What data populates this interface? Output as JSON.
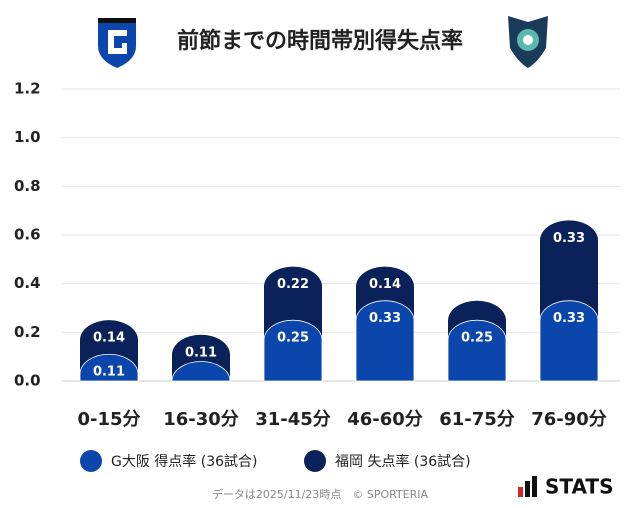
{
  "chart_data": {
    "type": "stacked-bar",
    "title": "前節までの時間帯別得失点率",
    "categories": [
      "0-15分",
      "16-30分",
      "31-45分",
      "46-60分",
      "61-75分",
      "76-90分"
    ],
    "series": [
      {
        "name": "G大阪 得点率 (36試合)",
        "color": "#0b46ad",
        "values": [
          0.11,
          0.08,
          0.25,
          0.33,
          0.25,
          0.33
        ]
      },
      {
        "name": "福岡 失点率 (36試合)",
        "color": "#0a2159",
        "values": [
          0.14,
          0.11,
          0.22,
          0.14,
          0.08,
          0.33
        ]
      }
    ],
    "ylim": [
      0,
      1.2
    ],
    "yticks": [
      {
        "value": 0,
        "label": "0.0"
      },
      0.2,
      0.4,
      0.6,
      0.8,
      {
        "value": 1,
        "label": "1.0"
      },
      1.2
    ],
    "grid": true
  },
  "footer": {
    "note": "データは2025/11/23時点　© SPORTERIA",
    "brand": "STATS"
  }
}
